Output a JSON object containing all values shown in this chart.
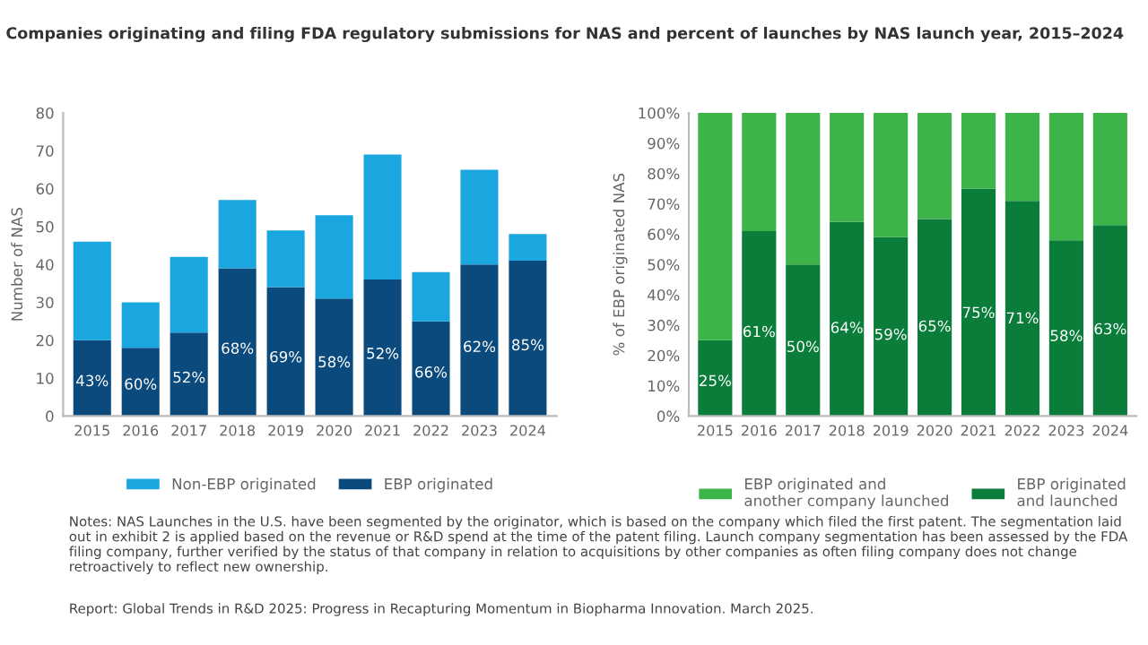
{
  "chart_data": [
    {
      "type": "bar",
      "title": "Companies originating and filing FDA regulatory submissions for NAS and percent of launches by NAS launch year, 2015–2024",
      "ylabel": "Number of NAS",
      "categories": [
        "2015",
        "2016",
        "2017",
        "2018",
        "2019",
        "2020",
        "2021",
        "2022",
        "2023",
        "2024"
      ],
      "stacked": true,
      "ylim": [
        0,
        80
      ],
      "yticks": [
        0,
        10,
        20,
        30,
        40,
        50,
        60,
        70,
        80
      ],
      "grid": false,
      "legend": "bottom",
      "series": [
        {
          "name": "EBP originated",
          "color": "#0b4a7d",
          "values": [
            20,
            18,
            22,
            39,
            34,
            31,
            36,
            25,
            40,
            41
          ]
        },
        {
          "name": "Non-EBP originated",
          "color": "#1aa7e0",
          "values": [
            26,
            12,
            20,
            18,
            15,
            22,
            33,
            13,
            25,
            7
          ]
        }
      ],
      "annotations": [
        "43%",
        "60%",
        "52%",
        "68%",
        "69%",
        "58%",
        "52%",
        "66%",
        "62%",
        "85%",
        "Notes: NAS Launches in the U.S. have been segmented by the originator, which is based on the company which filed the first patent. The segmentation laid out in exhibit 2 is applied based on the revenue or R&D spend at the time of the patent filing. Launch company segmentation has been assessed by the FDA filing company, further verified by the status of that company in relation to acquisitions by other companies as often filing company does not change retroactively to reflect new ownership.",
        "Report: Global Trends in R&D 2025: Progress in Recapturing Momentum in Biopharma Innovation. March 2025."
      ]
    },
    {
      "type": "bar",
      "ylabel": "% of EBP originated NAS",
      "categories": [
        "2015",
        "2016",
        "2017",
        "2018",
        "2019",
        "2020",
        "2021",
        "2022",
        "2023",
        "2024"
      ],
      "stacked": true,
      "ylim": [
        0,
        100
      ],
      "yticks": [
        {
          "value": 0,
          "label": "0%"
        },
        {
          "value": 10,
          "label": "10%"
        },
        {
          "value": 20,
          "label": "20%"
        },
        {
          "value": 30,
          "label": "30%"
        },
        {
          "value": 40,
          "label": "40%"
        },
        {
          "value": 50,
          "label": "50%"
        },
        {
          "value": 60,
          "label": "60%"
        },
        {
          "value": 70,
          "label": "70%"
        },
        {
          "value": 80,
          "label": "80%"
        },
        {
          "value": 90,
          "label": "90%"
        },
        {
          "value": 100,
          "label": "100%"
        }
      ],
      "grid": false,
      "legend": "bottom",
      "series": [
        {
          "name": "EBP originated\nand launched",
          "color": "#0a7d3a",
          "values": [
            25,
            61,
            50,
            64,
            59,
            65,
            75,
            71,
            58,
            63
          ],
          "value_labels": [
            "25%",
            "61%",
            "50%",
            "64%",
            "59%",
            "65%",
            "75%",
            "71%",
            "58%",
            "63%"
          ]
        },
        {
          "name": "EBP originated and\nanother company launched",
          "color": "#3cb44a",
          "values": [
            75,
            39,
            50,
            36,
            41,
            35,
            25,
            29,
            42,
            37
          ]
        }
      ]
    }
  ]
}
